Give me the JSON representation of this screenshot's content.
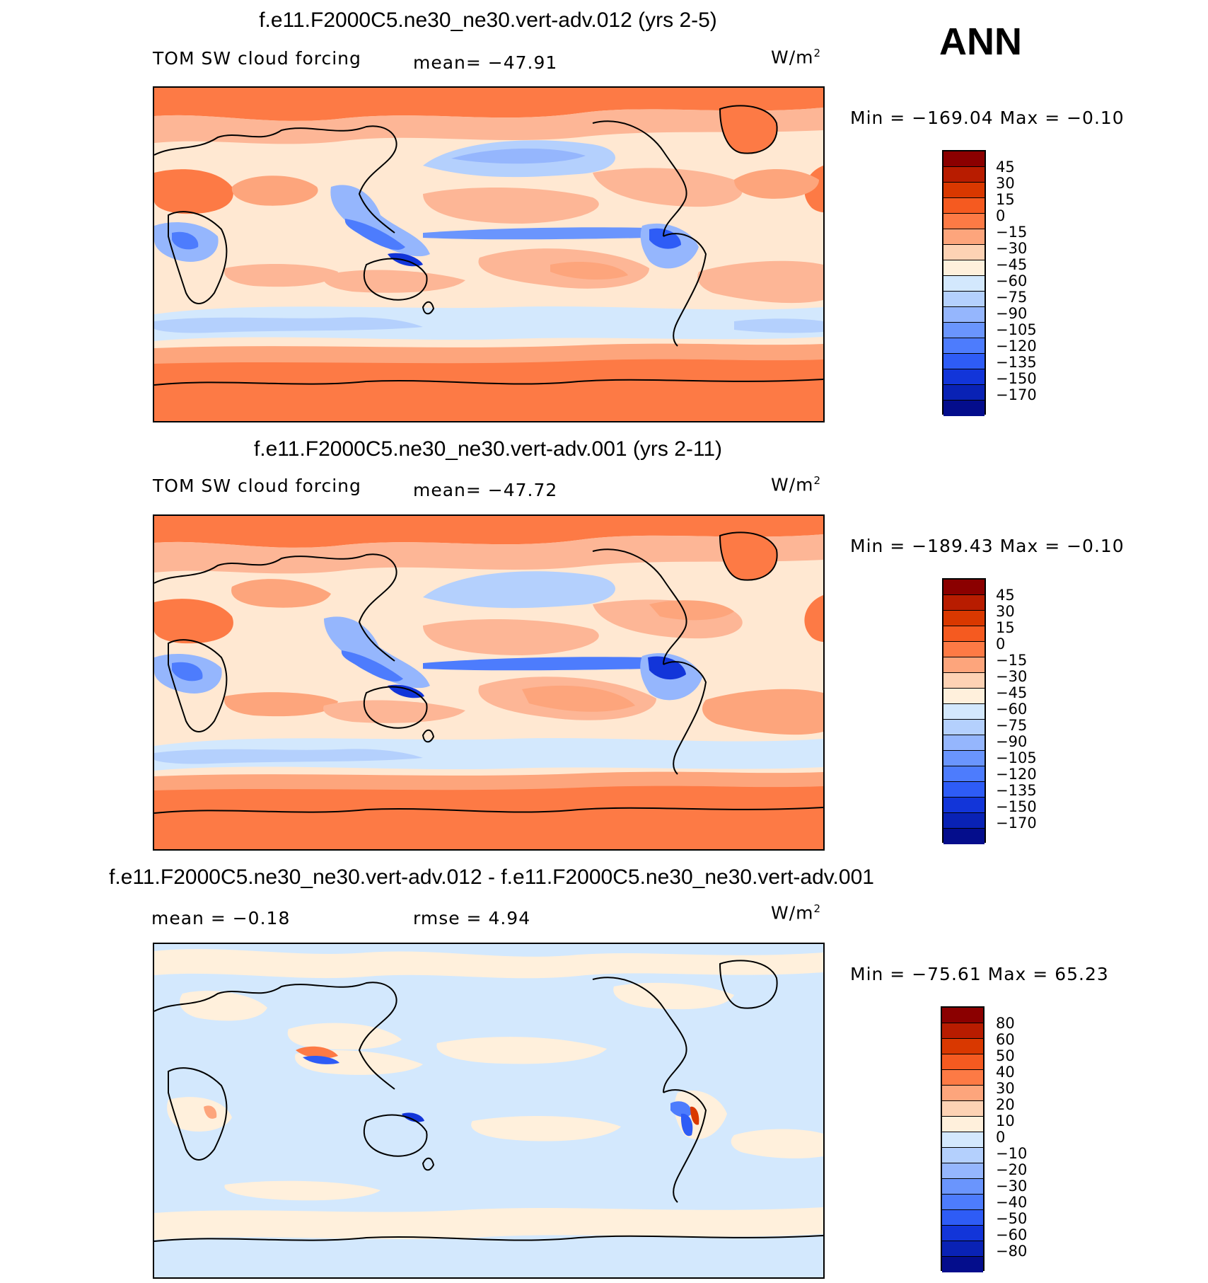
{
  "season": "ANN",
  "panels": [
    {
      "id": "panel-1",
      "title": "f.e11.F2000C5.ne30_ne30.vert-adv.012 (yrs 2-5)",
      "variable": "TOM SW cloud forcing",
      "mean_text": "mean=  −47.91",
      "stat2_text": "",
      "units": "W/m",
      "units_sup": "2",
      "minmax_text": "Min  =  −169.04  Max  =   −0.10",
      "colorbar": {
        "colors": [
          "#8b0000",
          "#b81c00",
          "#d93800",
          "#f55a20",
          "#fd7a45",
          "#fda57c",
          "#fdd2b4",
          "#fff0dc",
          "#d3e8fd",
          "#b4d0fd",
          "#95b6fd",
          "#6a95fd",
          "#4d7cfd",
          "#2e5cf6",
          "#1235d9",
          "#0922b5",
          "#040d8c"
        ],
        "labels": [
          "45",
          "30",
          "15",
          "0",
          "−15",
          "−30",
          "−45",
          "−60",
          "−75",
          "−90",
          "−105",
          "−120",
          "−135",
          "−150",
          "−170"
        ]
      }
    },
    {
      "id": "panel-2",
      "title": "f.e11.F2000C5.ne30_ne30.vert-adv.001 (yrs 2-11)",
      "variable": "TOM SW cloud forcing",
      "mean_text": "mean=  −47.72",
      "stat2_text": "",
      "units": "W/m",
      "units_sup": "2",
      "minmax_text": "Min  =  −189.43  Max  =   −0.10",
      "colorbar": {
        "colors": [
          "#8b0000",
          "#b81c00",
          "#d93800",
          "#f55a20",
          "#fd7a45",
          "#fda57c",
          "#fdd2b4",
          "#fff0dc",
          "#d3e8fd",
          "#b4d0fd",
          "#95b6fd",
          "#6a95fd",
          "#4d7cfd",
          "#2e5cf6",
          "#1235d9",
          "#0922b5",
          "#040d8c"
        ],
        "labels": [
          "45",
          "30",
          "15",
          "0",
          "−15",
          "−30",
          "−45",
          "−60",
          "−75",
          "−90",
          "−105",
          "−120",
          "−135",
          "−150",
          "−170"
        ]
      }
    },
    {
      "id": "panel-3",
      "title": "f.e11.F2000C5.ne30_ne30.vert-adv.012 - f.e11.F2000C5.ne30_ne30.vert-adv.001",
      "variable": "",
      "mean_text": "mean  =    −0.18",
      "stat2_text": "rmse  =     4.94",
      "units": "W/m",
      "units_sup": "2",
      "minmax_text": "Min  =  −75.61  Max  =    65.23",
      "colorbar": {
        "colors": [
          "#8b0000",
          "#b81c00",
          "#d93800",
          "#f55a20",
          "#fd7a45",
          "#fda57c",
          "#fdd2b4",
          "#fff0dc",
          "#d3e8fd",
          "#b4d0fd",
          "#95b6fd",
          "#6a95fd",
          "#4d7cfd",
          "#2e5cf6",
          "#1235d9",
          "#0922b5",
          "#040d8c"
        ],
        "labels": [
          "80",
          "60",
          "50",
          "40",
          "30",
          "20",
          "10",
          "0",
          "−10",
          "−20",
          "−30",
          "−40",
          "−50",
          "−60",
          "−80"
        ]
      }
    }
  ]
}
